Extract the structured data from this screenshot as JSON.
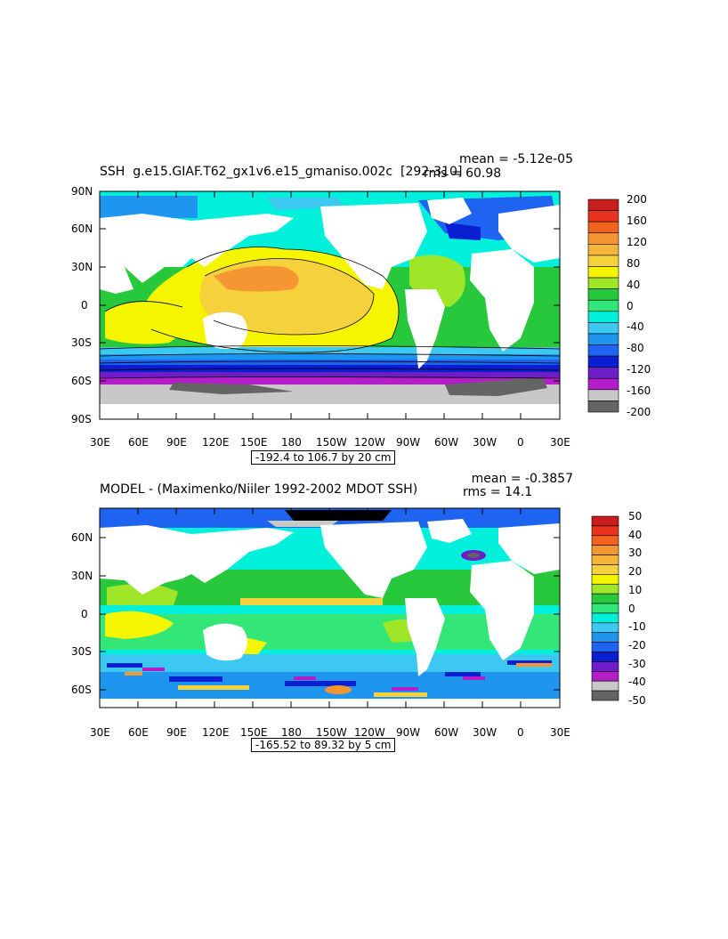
{
  "panels": [
    {
      "title": "SSH  g.e15.GIAF.T62_gx1v6.e15_gmaniso.002c  [292-310]",
      "mean_text": "mean = -5.12e-05",
      "rms_text": "rms = 60.98",
      "lat_labels": [
        "90N",
        "60N",
        "30N",
        "0",
        "30S",
        "60S",
        "90S"
      ],
      "lon_labels": [
        "30E",
        "60E",
        "90E",
        "120E",
        "150E",
        "180",
        "150W",
        "120W",
        "90W",
        "60W",
        "30W",
        "0",
        "30E"
      ],
      "range_text": "-192.4 to 106.7 by 20 cm",
      "colorbar": {
        "labels": [
          "200",
          "160",
          "120",
          "80",
          "40",
          "0",
          "-40",
          "-80",
          "-120",
          "-160",
          "-200"
        ],
        "colors": [
          "#c81e1e",
          "#e8321e",
          "#f0641e",
          "#f59632",
          "#f5b43c",
          "#f5d23c",
          "#f5f500",
          "#a0e628",
          "#28c83c",
          "#32e678",
          "#00f0dc",
          "#3cc8f0",
          "#1e96f0",
          "#1e64f0",
          "#0a1ed2",
          "#6e1ec8",
          "#b41ec8",
          "#c8c8c8",
          "#646464"
        ]
      }
    },
    {
      "title": "MODEL - (Maximenko/Niiler 1992-2002 MDOT SSH)",
      "mean_text": "mean = -0.3857",
      "rms_text": "rms = 14.1",
      "lat_labels": [
        "60N",
        "30N",
        "0",
        "30S",
        "60S"
      ],
      "lon_labels": [
        "30E",
        "60E",
        "90E",
        "120E",
        "150E",
        "180",
        "150W",
        "120W",
        "90W",
        "60W",
        "30W",
        "0",
        "30E"
      ],
      "range_text": "-165.52 to 89.32 by 5 cm",
      "colorbar": {
        "labels": [
          "50",
          "40",
          "30",
          "20",
          "10",
          "0",
          "-10",
          "-20",
          "-30",
          "-40",
          "-50"
        ],
        "colors": [
          "#c81e1e",
          "#e8321e",
          "#f0641e",
          "#f59632",
          "#f5b43c",
          "#f5d23c",
          "#f5f500",
          "#a0e628",
          "#28c83c",
          "#32e678",
          "#00f0dc",
          "#3cc8f0",
          "#1e96f0",
          "#1e64f0",
          "#0a1ed2",
          "#6e1ec8",
          "#b41ec8",
          "#c8c8c8",
          "#646464"
        ]
      }
    }
  ]
}
